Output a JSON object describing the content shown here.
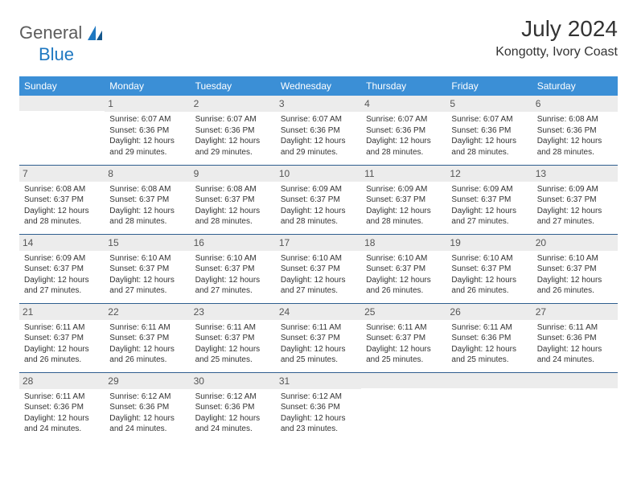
{
  "logo": {
    "text1": "General",
    "text2": "Blue"
  },
  "title": "July 2024",
  "location": "Kongotty, Ivory Coast",
  "colors": {
    "header_bg": "#3b8fd6",
    "header_text": "#ffffff",
    "row_divider": "#2f5e8f",
    "daynum_bg": "#ececec",
    "text": "#333333",
    "logo_gray": "#5c5c5c",
    "logo_blue": "#1f78c1"
  },
  "weekdays": [
    "Sunday",
    "Monday",
    "Tuesday",
    "Wednesday",
    "Thursday",
    "Friday",
    "Saturday"
  ],
  "weeks": [
    [
      {
        "n": null
      },
      {
        "n": "1",
        "sr": "Sunrise: 6:07 AM",
        "ss": "Sunset: 6:36 PM",
        "d1": "Daylight: 12 hours",
        "d2": "and 29 minutes."
      },
      {
        "n": "2",
        "sr": "Sunrise: 6:07 AM",
        "ss": "Sunset: 6:36 PM",
        "d1": "Daylight: 12 hours",
        "d2": "and 29 minutes."
      },
      {
        "n": "3",
        "sr": "Sunrise: 6:07 AM",
        "ss": "Sunset: 6:36 PM",
        "d1": "Daylight: 12 hours",
        "d2": "and 29 minutes."
      },
      {
        "n": "4",
        "sr": "Sunrise: 6:07 AM",
        "ss": "Sunset: 6:36 PM",
        "d1": "Daylight: 12 hours",
        "d2": "and 28 minutes."
      },
      {
        "n": "5",
        "sr": "Sunrise: 6:07 AM",
        "ss": "Sunset: 6:36 PM",
        "d1": "Daylight: 12 hours",
        "d2": "and 28 minutes."
      },
      {
        "n": "6",
        "sr": "Sunrise: 6:08 AM",
        "ss": "Sunset: 6:36 PM",
        "d1": "Daylight: 12 hours",
        "d2": "and 28 minutes."
      }
    ],
    [
      {
        "n": "7",
        "sr": "Sunrise: 6:08 AM",
        "ss": "Sunset: 6:37 PM",
        "d1": "Daylight: 12 hours",
        "d2": "and 28 minutes."
      },
      {
        "n": "8",
        "sr": "Sunrise: 6:08 AM",
        "ss": "Sunset: 6:37 PM",
        "d1": "Daylight: 12 hours",
        "d2": "and 28 minutes."
      },
      {
        "n": "9",
        "sr": "Sunrise: 6:08 AM",
        "ss": "Sunset: 6:37 PM",
        "d1": "Daylight: 12 hours",
        "d2": "and 28 minutes."
      },
      {
        "n": "10",
        "sr": "Sunrise: 6:09 AM",
        "ss": "Sunset: 6:37 PM",
        "d1": "Daylight: 12 hours",
        "d2": "and 28 minutes."
      },
      {
        "n": "11",
        "sr": "Sunrise: 6:09 AM",
        "ss": "Sunset: 6:37 PM",
        "d1": "Daylight: 12 hours",
        "d2": "and 28 minutes."
      },
      {
        "n": "12",
        "sr": "Sunrise: 6:09 AM",
        "ss": "Sunset: 6:37 PM",
        "d1": "Daylight: 12 hours",
        "d2": "and 27 minutes."
      },
      {
        "n": "13",
        "sr": "Sunrise: 6:09 AM",
        "ss": "Sunset: 6:37 PM",
        "d1": "Daylight: 12 hours",
        "d2": "and 27 minutes."
      }
    ],
    [
      {
        "n": "14",
        "sr": "Sunrise: 6:09 AM",
        "ss": "Sunset: 6:37 PM",
        "d1": "Daylight: 12 hours",
        "d2": "and 27 minutes."
      },
      {
        "n": "15",
        "sr": "Sunrise: 6:10 AM",
        "ss": "Sunset: 6:37 PM",
        "d1": "Daylight: 12 hours",
        "d2": "and 27 minutes."
      },
      {
        "n": "16",
        "sr": "Sunrise: 6:10 AM",
        "ss": "Sunset: 6:37 PM",
        "d1": "Daylight: 12 hours",
        "d2": "and 27 minutes."
      },
      {
        "n": "17",
        "sr": "Sunrise: 6:10 AM",
        "ss": "Sunset: 6:37 PM",
        "d1": "Daylight: 12 hours",
        "d2": "and 27 minutes."
      },
      {
        "n": "18",
        "sr": "Sunrise: 6:10 AM",
        "ss": "Sunset: 6:37 PM",
        "d1": "Daylight: 12 hours",
        "d2": "and 26 minutes."
      },
      {
        "n": "19",
        "sr": "Sunrise: 6:10 AM",
        "ss": "Sunset: 6:37 PM",
        "d1": "Daylight: 12 hours",
        "d2": "and 26 minutes."
      },
      {
        "n": "20",
        "sr": "Sunrise: 6:10 AM",
        "ss": "Sunset: 6:37 PM",
        "d1": "Daylight: 12 hours",
        "d2": "and 26 minutes."
      }
    ],
    [
      {
        "n": "21",
        "sr": "Sunrise: 6:11 AM",
        "ss": "Sunset: 6:37 PM",
        "d1": "Daylight: 12 hours",
        "d2": "and 26 minutes."
      },
      {
        "n": "22",
        "sr": "Sunrise: 6:11 AM",
        "ss": "Sunset: 6:37 PM",
        "d1": "Daylight: 12 hours",
        "d2": "and 26 minutes."
      },
      {
        "n": "23",
        "sr": "Sunrise: 6:11 AM",
        "ss": "Sunset: 6:37 PM",
        "d1": "Daylight: 12 hours",
        "d2": "and 25 minutes."
      },
      {
        "n": "24",
        "sr": "Sunrise: 6:11 AM",
        "ss": "Sunset: 6:37 PM",
        "d1": "Daylight: 12 hours",
        "d2": "and 25 minutes."
      },
      {
        "n": "25",
        "sr": "Sunrise: 6:11 AM",
        "ss": "Sunset: 6:37 PM",
        "d1": "Daylight: 12 hours",
        "d2": "and 25 minutes."
      },
      {
        "n": "26",
        "sr": "Sunrise: 6:11 AM",
        "ss": "Sunset: 6:36 PM",
        "d1": "Daylight: 12 hours",
        "d2": "and 25 minutes."
      },
      {
        "n": "27",
        "sr": "Sunrise: 6:11 AM",
        "ss": "Sunset: 6:36 PM",
        "d1": "Daylight: 12 hours",
        "d2": "and 24 minutes."
      }
    ],
    [
      {
        "n": "28",
        "sr": "Sunrise: 6:11 AM",
        "ss": "Sunset: 6:36 PM",
        "d1": "Daylight: 12 hours",
        "d2": "and 24 minutes."
      },
      {
        "n": "29",
        "sr": "Sunrise: 6:12 AM",
        "ss": "Sunset: 6:36 PM",
        "d1": "Daylight: 12 hours",
        "d2": "and 24 minutes."
      },
      {
        "n": "30",
        "sr": "Sunrise: 6:12 AM",
        "ss": "Sunset: 6:36 PM",
        "d1": "Daylight: 12 hours",
        "d2": "and 24 minutes."
      },
      {
        "n": "31",
        "sr": "Sunrise: 6:12 AM",
        "ss": "Sunset: 6:36 PM",
        "d1": "Daylight: 12 hours",
        "d2": "and 23 minutes."
      },
      {
        "n": null
      },
      {
        "n": null
      },
      {
        "n": null
      }
    ]
  ]
}
